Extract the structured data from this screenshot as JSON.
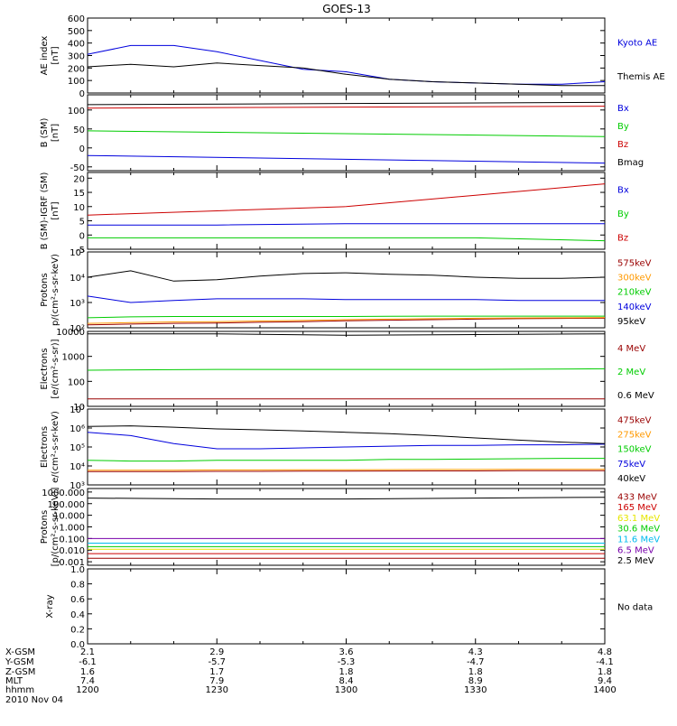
{
  "title": "GOES-13",
  "colors": {
    "black": "#000000",
    "blue": "#0000dd",
    "green": "#00cc00",
    "red": "#cc0000",
    "darkred": "#990000",
    "orange": "#ff9900",
    "yellow": "#e6e600",
    "cyan": "#00bbee",
    "purple": "#7700aa"
  },
  "chart_data": [
    {
      "type": "line",
      "ylabel": [
        "AE index",
        "[nT]"
      ],
      "yscale": "linear",
      "ylim": [
        0,
        600
      ],
      "ticks": [
        0,
        100,
        200,
        300,
        400,
        500,
        600
      ],
      "tick_labels": [
        "0",
        "100",
        "200",
        "300",
        "400",
        "500",
        "600"
      ],
      "x": [
        1200,
        1210,
        1220,
        1230,
        1240,
        1250,
        1300,
        1310,
        1320,
        1330,
        1340,
        1350,
        1400
      ],
      "series": [
        {
          "name": "Kyoto AE",
          "color": "blue",
          "values": [
            310,
            380,
            380,
            330,
            260,
            190,
            170,
            110,
            90,
            80,
            70,
            70,
            90
          ]
        },
        {
          "name": "Themis AE",
          "color": "black",
          "values": [
            210,
            230,
            210,
            240,
            220,
            200,
            150,
            110,
            90,
            80,
            70,
            60,
            60
          ]
        }
      ]
    },
    {
      "type": "line",
      "ylabel": [
        "B (SM)",
        "[nT]"
      ],
      "yscale": "linear",
      "ylim": [
        -60,
        140
      ],
      "ticks": [
        -50,
        0,
        50,
        100
      ],
      "tick_labels": [
        "-50",
        "0",
        "50",
        "100"
      ],
      "x": [
        1200,
        1400
      ],
      "series": [
        {
          "name": "Bx",
          "color": "blue",
          "values": [
            -20,
            -40
          ]
        },
        {
          "name": "By",
          "color": "green",
          "values": [
            45,
            30
          ]
        },
        {
          "name": "Bz",
          "color": "red",
          "values": [
            105,
            110
          ]
        },
        {
          "name": "Bmag",
          "color": "black",
          "values": [
            114,
            120
          ]
        }
      ]
    },
    {
      "type": "line",
      "ylabel": [
        "B (SM)-IGRF (SM)",
        "[nT]"
      ],
      "yscale": "linear",
      "ylim": [
        -5,
        22
      ],
      "ticks": [
        -5,
        0,
        5,
        10,
        15,
        20
      ],
      "tick_labels": [
        "-5",
        "0",
        "5",
        "10",
        "15",
        "20"
      ],
      "x": [
        1200,
        1230,
        1300,
        1330,
        1400
      ],
      "series": [
        {
          "name": "Bx",
          "color": "blue",
          "values": [
            3.5,
            3.5,
            4,
            4,
            4
          ]
        },
        {
          "name": "By",
          "color": "green",
          "values": [
            -1,
            -1,
            -1,
            -1,
            -2
          ]
        },
        {
          "name": "Bz",
          "color": "red",
          "values": [
            7,
            8.5,
            10,
            14,
            18
          ]
        }
      ]
    },
    {
      "type": "line",
      "ylabel": [
        "Protons",
        "p/(cm²-s-sr-keV)"
      ],
      "yscale": "log",
      "ylim": [
        100,
        100000
      ],
      "ticks": [
        100,
        1000,
        10000,
        100000
      ],
      "tick_labels": [
        "10²",
        "10³",
        "10⁴",
        "10⁵"
      ],
      "x": [
        1200,
        1210,
        1220,
        1230,
        1240,
        1250,
        1300,
        1310,
        1320,
        1330,
        1340,
        1350,
        1400
      ],
      "series": [
        {
          "name": "575keV",
          "color": "darkred",
          "values": [
            130,
            140,
            150,
            155,
            165,
            175,
            190,
            200,
            210,
            220,
            230,
            235,
            240
          ]
        },
        {
          "name": "300keV",
          "color": "orange",
          "values": [
            150,
            160,
            170,
            175,
            185,
            195,
            210,
            220,
            230,
            240,
            245,
            250,
            255
          ]
        },
        {
          "name": "210keV",
          "color": "green",
          "values": [
            250,
            270,
            280,
            280,
            280,
            280,
            280,
            285,
            290,
            290,
            290,
            290,
            290
          ]
        },
        {
          "name": "140keV",
          "color": "blue",
          "values": [
            1800,
            1000,
            1200,
            1400,
            1400,
            1400,
            1300,
            1300,
            1300,
            1300,
            1200,
            1200,
            1200
          ]
        },
        {
          "name": "95keV",
          "color": "black",
          "values": [
            10000,
            18000,
            7000,
            8000,
            11000,
            14000,
            15000,
            13000,
            12000,
            10000,
            9000,
            9000,
            10000
          ]
        }
      ]
    },
    {
      "type": "line",
      "ylabel": [
        "Electrons",
        "[e/(cm²-s-sr)]"
      ],
      "yscale": "log",
      "ylim": [
        10,
        10000
      ],
      "ticks": [
        10,
        100,
        1000,
        10000
      ],
      "tick_labels": [
        "10",
        "100",
        "1000",
        "10000"
      ],
      "x": [
        1200,
        1230,
        1300,
        1330,
        1400
      ],
      "series": [
        {
          "name": "4 MeV",
          "color": "darkred",
          "values": [
            20,
            20,
            20,
            20,
            20
          ]
        },
        {
          "name": "2 MeV",
          "color": "green",
          "values": [
            280,
            300,
            300,
            300,
            320
          ]
        },
        {
          "name": "0.6 MeV",
          "color": "black",
          "values": [
            8000,
            8000,
            7000,
            7500,
            8000
          ]
        }
      ]
    },
    {
      "type": "line",
      "ylabel": [
        "Electrons",
        "e/(cm²-s-sr-keV)"
      ],
      "yscale": "log",
      "ylim": [
        1000,
        10000000
      ],
      "ticks": [
        1000,
        10000,
        100000,
        1000000,
        10000000
      ],
      "tick_labels": [
        "10³",
        "10⁴",
        "10⁵",
        "10⁶",
        "10⁷"
      ],
      "x": [
        1200,
        1210,
        1220,
        1230,
        1240,
        1250,
        1300,
        1310,
        1320,
        1330,
        1340,
        1350,
        1400
      ],
      "series": [
        {
          "name": "475keV",
          "color": "darkred",
          "values": [
            5000,
            5000,
            5000,
            5200,
            5200,
            5300,
            5300,
            5400,
            5500,
            5500,
            5600,
            5600,
            5600
          ]
        },
        {
          "name": "275keV",
          "color": "orange",
          "values": [
            6000,
            6000,
            6000,
            6200,
            6200,
            6300,
            6300,
            6400,
            6500,
            6500,
            6600,
            6600,
            6600
          ]
        },
        {
          "name": "150keV",
          "color": "green",
          "values": [
            20000,
            18000,
            18000,
            20000,
            20000,
            20000,
            20000,
            22000,
            22000,
            23000,
            24000,
            25000,
            25000
          ]
        },
        {
          "name": "75keV",
          "color": "blue",
          "values": [
            600000,
            400000,
            150000,
            80000,
            80000,
            90000,
            100000,
            110000,
            120000,
            120000,
            130000,
            130000,
            140000
          ]
        },
        {
          "name": "40keV",
          "color": "black",
          "values": [
            1200000,
            1300000,
            1100000,
            900000,
            800000,
            700000,
            600000,
            500000,
            400000,
            300000,
            230000,
            180000,
            150000
          ]
        }
      ]
    },
    {
      "type": "line",
      "ylabel": [
        "Protons",
        "[p/(cm²-s-sr-keV)]"
      ],
      "yscale": "log",
      "ylim": [
        0.0005,
        2000
      ],
      "ticks": [
        0.001,
        0.01,
        0.1,
        1,
        10,
        100,
        1000
      ],
      "tick_labels": [
        "0.001",
        "0.010",
        "0.100",
        "1.000",
        "10.000",
        "100.000",
        "1000.000"
      ],
      "x": [
        1200,
        1230,
        1300,
        1330,
        1400
      ],
      "series": [
        {
          "name": "433 MeV",
          "color": "darkred",
          "values": [
            0.002,
            0.002,
            0.002,
            0.002,
            0.002
          ]
        },
        {
          "name": "165 MeV",
          "color": "red",
          "values": [
            0.005,
            0.005,
            0.005,
            0.005,
            0.005
          ]
        },
        {
          "name": "63.1 MeV",
          "color": "yellow",
          "values": [
            0.012,
            0.012,
            0.012,
            0.012,
            0.012
          ]
        },
        {
          "name": "30.6 MeV",
          "color": "green",
          "values": [
            0.02,
            0.02,
            0.02,
            0.02,
            0.02
          ]
        },
        {
          "name": "11.6 MeV",
          "color": "cyan",
          "values": [
            0.04,
            0.04,
            0.04,
            0.04,
            0.04
          ]
        },
        {
          "name": "6.5 MeV",
          "color": "purple",
          "values": [
            0.1,
            0.1,
            0.1,
            0.1,
            0.1
          ]
        },
        {
          "name": "2.5 MeV",
          "color": "black",
          "values": [
            300,
            250,
            250,
            300,
            350
          ]
        }
      ]
    },
    {
      "type": "line",
      "ylabel": [
        "X-ray",
        ""
      ],
      "yscale": "linear",
      "ylim": [
        0,
        1
      ],
      "ticks": [
        0,
        0.2,
        0.4,
        0.6,
        0.8,
        1.0
      ],
      "tick_labels": [
        "0.0",
        "0.2",
        "0.4",
        "0.6",
        "0.8",
        "1.0"
      ],
      "series": [],
      "note": "No data"
    }
  ],
  "x_axis": {
    "range": [
      1200,
      1400
    ],
    "major_ticks": [
      1200,
      1230,
      1300,
      1330,
      1400
    ],
    "rows": [
      {
        "label": "X-GSM",
        "values": [
          "2.1",
          "2.9",
          "3.6",
          "4.3",
          "4.8"
        ]
      },
      {
        "label": "Y-GSM",
        "values": [
          "-6.1",
          "-5.7",
          "-5.3",
          "-4.7",
          "-4.1"
        ]
      },
      {
        "label": "Z-GSM",
        "values": [
          "1.6",
          "1.7",
          "1.8",
          "1.8",
          "1.8"
        ]
      },
      {
        "label": "MLT",
        "values": [
          "7.4",
          "7.9",
          "8.4",
          "8.9",
          "9.4"
        ]
      },
      {
        "label": "hhmm",
        "values": [
          "1200",
          "1230",
          "1300",
          "1330",
          "1400"
        ]
      }
    ],
    "date": "2010 Nov 04"
  }
}
